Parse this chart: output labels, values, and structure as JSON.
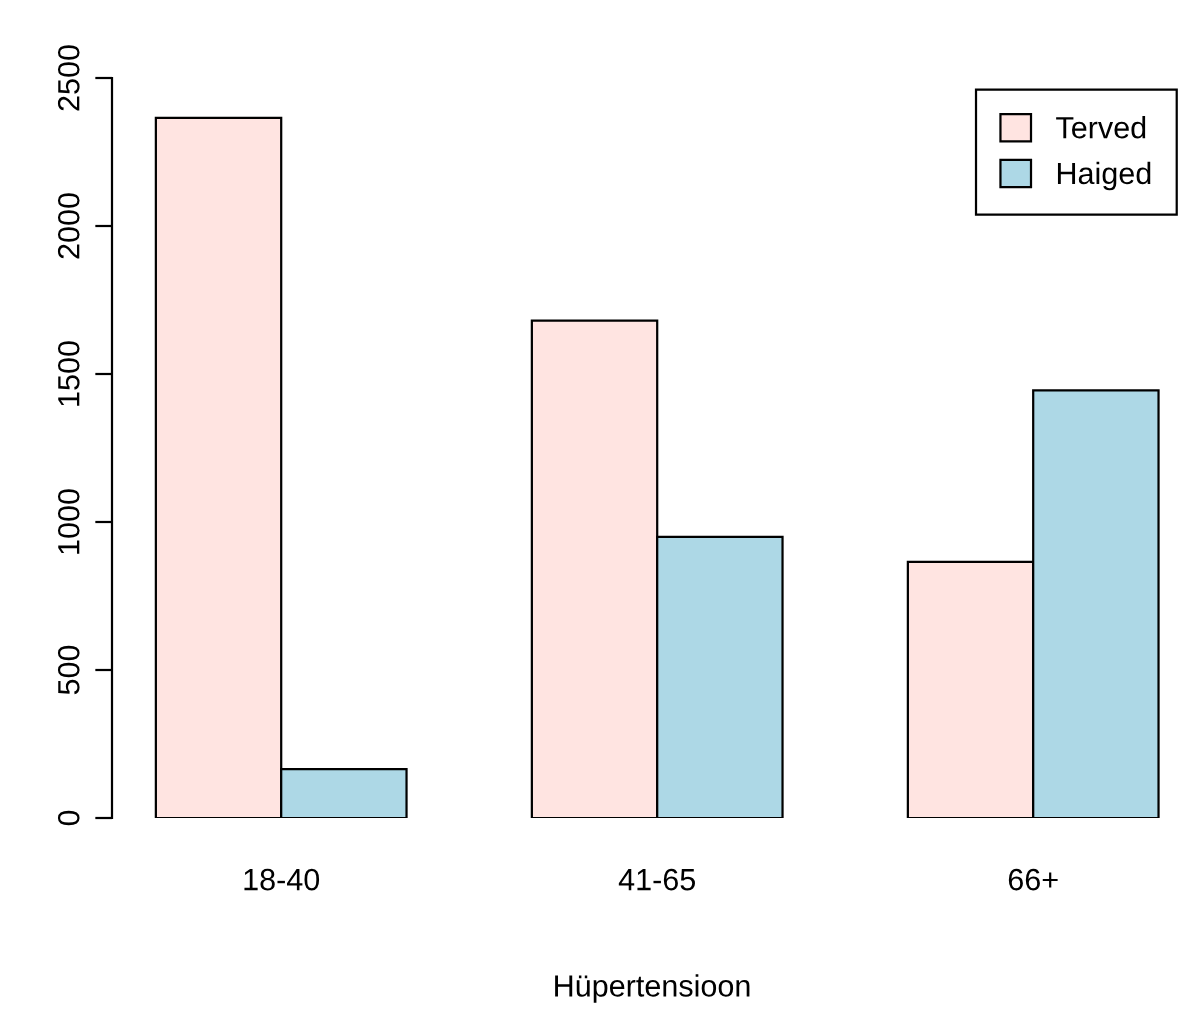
{
  "chart_data": {
    "type": "bar",
    "xlabel": "Hüpertensioon",
    "categories": [
      "18-40",
      "41-65",
      "66+"
    ],
    "series": [
      {
        "name": "Terved",
        "color": "#ffe4e1",
        "values": [
          2365,
          1680,
          865
        ]
      },
      {
        "name": "Haiged",
        "color": "#add8e6",
        "values": [
          165,
          950,
          1445
        ]
      }
    ],
    "ylim": [
      0,
      2500
    ],
    "yticks": [
      0,
      500,
      1000,
      1500,
      2000,
      2500
    ],
    "grid": false,
    "legend": "top right"
  }
}
